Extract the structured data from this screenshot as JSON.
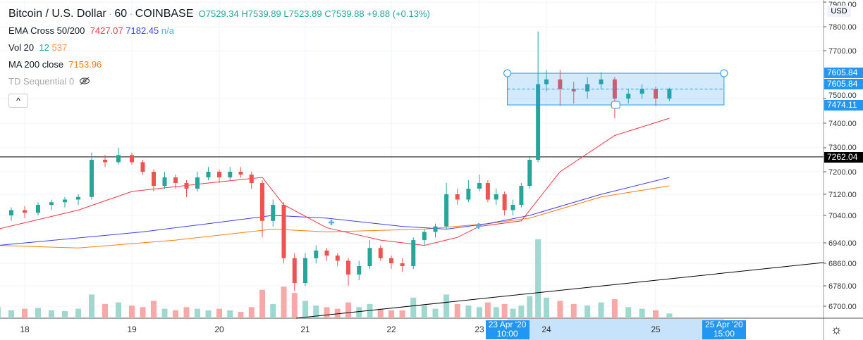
{
  "header": {
    "symbol": "Bitcoin / U.S. Dollar",
    "interval": "60",
    "exchange": "COINBASE",
    "open": "O7529.34",
    "high": "H7539.89",
    "low": "L7523.89",
    "close": "C7539.88",
    "change": "+9.88 (+0.13%)"
  },
  "indicators": {
    "ema_cross": {
      "label": "EMA Cross 50/200",
      "v1": "7427.07",
      "v2": "7182.45",
      "v3": "n/a"
    },
    "vol": {
      "label": "Vol 20",
      "v1": "12",
      "v2": "537"
    },
    "ma": {
      "label": "MA 200 close",
      "v1": "7153.96"
    },
    "td": {
      "label": "TD Sequential 0",
      "icon": "eye-off-icon"
    }
  },
  "collapse_icon": "chevron-up-icon",
  "currency": "USD",
  "settings_icon": "gear-icon",
  "colors": {
    "up": "#26a69a",
    "down": "#ef5350",
    "ema50": "#f23645",
    "ema200": "#3d3dff",
    "ma200": "#ff7f0e",
    "selection": "#2196f3"
  },
  "chart_data": {
    "type": "candlestick",
    "y_ticks": [
      "7900.00",
      "7800.00",
      "7700.00",
      "7500.00",
      "7400.00",
      "7300.00",
      "7200.00",
      "7120.00",
      "7040.00",
      "6940.00",
      "6860.00",
      "6780.00",
      "6700.00"
    ],
    "x_ticks": [
      "18",
      "19",
      "20",
      "21",
      "22",
      "23",
      "24",
      "25"
    ],
    "price_tags": {
      "box_top": "7605.84",
      "box_top2": "7605.84",
      "box_bottom": "7474.11",
      "hline": "7262.04"
    },
    "time_tags": {
      "start": "23 Apr '20  10:00",
      "end": "25 Apr '20  15:00"
    },
    "candles": [
      [
        "04-17 18:00",
        7030,
        7050,
        7010,
        7040
      ],
      [
        "04-17 21:00",
        7040,
        7070,
        7020,
        7060
      ],
      [
        "04-18 00:00",
        7060,
        7075,
        7030,
        7050
      ],
      [
        "04-18 03:00",
        7050,
        7090,
        7040,
        7080
      ],
      [
        "04-18 06:00",
        7080,
        7100,
        7060,
        7090
      ],
      [
        "04-18 09:00",
        7090,
        7110,
        7070,
        7100
      ],
      [
        "04-18 12:00",
        7100,
        7120,
        7080,
        7110
      ],
      [
        "04-18 15:00",
        7110,
        7280,
        7100,
        7250
      ],
      [
        "04-18 18:00",
        7250,
        7270,
        7220,
        7240
      ],
      [
        "04-18 21:00",
        7240,
        7300,
        7230,
        7270
      ],
      [
        "04-19 00:00",
        7270,
        7280,
        7230,
        7240
      ],
      [
        "04-19 03:00",
        7240,
        7250,
        7190,
        7200
      ],
      [
        "04-19 06:00",
        7200,
        7210,
        7130,
        7150
      ],
      [
        "04-19 09:00",
        7150,
        7200,
        7140,
        7180
      ],
      [
        "04-19 12:00",
        7180,
        7190,
        7140,
        7160
      ],
      [
        "04-19 15:00",
        7160,
        7170,
        7110,
        7140
      ],
      [
        "04-19 18:00",
        7140,
        7200,
        7130,
        7180
      ],
      [
        "04-19 21:00",
        7180,
        7220,
        7170,
        7200
      ],
      [
        "04-20 00:00",
        7200,
        7210,
        7160,
        7180
      ],
      [
        "04-20 03:00",
        7180,
        7220,
        7170,
        7200
      ],
      [
        "04-20 06:00",
        7200,
        7220,
        7180,
        7190
      ],
      [
        "04-20 09:00",
        7190,
        7200,
        7140,
        7160
      ],
      [
        "04-20 12:00",
        7160,
        7170,
        6960,
        7020
      ],
      [
        "04-20 15:00",
        7020,
        7100,
        7000,
        7080
      ],
      [
        "04-20 18:00",
        7080,
        7090,
        6860,
        6880
      ],
      [
        "04-20 21:00",
        6880,
        6900,
        6760,
        6790
      ],
      [
        "04-21 00:00",
        6790,
        6900,
        6780,
        6880
      ],
      [
        "04-21 03:00",
        6880,
        6930,
        6860,
        6910
      ],
      [
        "04-21 06:00",
        6910,
        6920,
        6870,
        6890
      ],
      [
        "04-21 09:00",
        6890,
        6900,
        6850,
        6870
      ],
      [
        "04-21 12:00",
        6870,
        6880,
        6780,
        6820
      ],
      [
        "04-21 15:00",
        6820,
        6870,
        6800,
        6850
      ],
      [
        "04-21 18:00",
        6850,
        6950,
        6840,
        6920
      ],
      [
        "04-21 21:00",
        6920,
        6930,
        6870,
        6880
      ],
      [
        "04-22 00:00",
        6880,
        6890,
        6840,
        6860
      ],
      [
        "04-22 03:00",
        6860,
        6880,
        6830,
        6850
      ],
      [
        "04-22 06:00",
        6850,
        6960,
        6840,
        6950
      ],
      [
        "04-22 09:00",
        6950,
        6990,
        6930,
        6980
      ],
      [
        "04-22 12:00",
        6980,
        7010,
        6960,
        7000
      ],
      [
        "04-22 15:00",
        7000,
        7160,
        6990,
        7120
      ],
      [
        "04-22 18:00",
        7120,
        7140,
        7080,
        7100
      ],
      [
        "04-22 21:00",
        7100,
        7170,
        7090,
        7140
      ],
      [
        "04-23 00:00",
        7140,
        7190,
        7130,
        7160
      ],
      [
        "04-23 03:00",
        7160,
        7170,
        7090,
        7100
      ],
      [
        "04-23 06:00",
        7100,
        7140,
        7080,
        7120
      ],
      [
        "04-23 09:00",
        7120,
        7130,
        7040,
        7060
      ],
      [
        "04-23 12:00",
        7060,
        7100,
        7040,
        7080
      ],
      [
        "04-23 15:00",
        7080,
        7160,
        7070,
        7150
      ],
      [
        "04-23 18:00",
        7150,
        7260,
        7140,
        7250
      ],
      [
        "04-23 21:00",
        7250,
        7780,
        7240,
        7560
      ],
      [
        "04-24 00:00",
        7560,
        7620,
        7530,
        7580
      ],
      [
        "04-24 03:00",
        7580,
        7620,
        7470,
        7540
      ],
      [
        "04-24 06:00",
        7540,
        7570,
        7480,
        7530
      ],
      [
        "04-24 09:00",
        7530,
        7590,
        7500,
        7560
      ],
      [
        "04-24 12:00",
        7560,
        7610,
        7540,
        7580
      ],
      [
        "04-24 15:00",
        7580,
        7590,
        7420,
        7500
      ],
      [
        "04-24 18:00",
        7500,
        7540,
        7480,
        7520
      ],
      [
        "04-24 21:00",
        7520,
        7560,
        7500,
        7540
      ],
      [
        "04-25 00:00",
        7540,
        7550,
        7470,
        7500
      ],
      [
        "04-25 03:00",
        7500,
        7545,
        7490,
        7540
      ]
    ],
    "volumes": [
      700,
      500,
      600,
      650,
      500,
      450,
      600,
      1500,
      900,
      1000,
      800,
      700,
      1100,
      600,
      500,
      700,
      600,
      500,
      600,
      500,
      400,
      700,
      1800,
      900,
      2000,
      1600,
      1100,
      800,
      700,
      600,
      1000,
      700,
      900,
      600,
      500,
      500,
      1300,
      800,
      600,
      1500,
      900,
      800,
      700,
      1000,
      700,
      900,
      600,
      800,
      1400,
      5000,
      1300,
      1100,
      900,
      800,
      1000,
      1200,
      700,
      600,
      500,
      300
    ],
    "ema50": [
      [
        "04-17 18:00",
        6990
      ],
      [
        "04-18 12:00",
        7060
      ],
      [
        "04-19 00:00",
        7130
      ],
      [
        "04-19 21:00",
        7160
      ],
      [
        "04-20 12:00",
        7180
      ],
      [
        "04-20 18:00",
        7080
      ],
      [
        "04-21 06:00",
        6995
      ],
      [
        "04-21 21:00",
        6950
      ],
      [
        "04-22 09:00",
        6930
      ],
      [
        "04-22 18:00",
        6960
      ],
      [
        "04-23 00:00",
        7000
      ],
      [
        "04-23 15:00",
        7020
      ],
      [
        "04-23 21:00",
        7100
      ],
      [
        "04-24 03:00",
        7200
      ],
      [
        "04-24 15:00",
        7350
      ],
      [
        "04-25 03:00",
        7420
      ]
    ],
    "ema200": [
      [
        "04-17 18:00",
        6930
      ],
      [
        "04-19 03:00",
        6980
      ],
      [
        "04-19 21:00",
        7010
      ],
      [
        "04-20 15:00",
        7040
      ],
      [
        "04-21 06:00",
        7030
      ],
      [
        "04-22 03:00",
        7000
      ],
      [
        "04-22 15:00",
        6990
      ],
      [
        "04-23 03:00",
        7010
      ],
      [
        "04-23 18:00",
        7040
      ],
      [
        "04-24 12:00",
        7120
      ],
      [
        "04-25 03:00",
        7180
      ]
    ],
    "ma200": [
      [
        "04-17 18:00",
        6930
      ],
      [
        "04-18 12:00",
        6920
      ],
      [
        "04-19 12:00",
        6950
      ],
      [
        "04-20 15:00",
        6990
      ],
      [
        "04-21 06:00",
        6980
      ],
      [
        "04-22 09:00",
        6990
      ],
      [
        "04-23 03:00",
        7010
      ],
      [
        "04-23 18:00",
        7030
      ],
      [
        "04-24 12:00",
        7110
      ],
      [
        "04-25 03:00",
        7150
      ]
    ],
    "rectangle": {
      "top": 7605.84,
      "bottom": 7474.11,
      "start": "04-23 10:00",
      "end": "04-25 15:00"
    },
    "horizontal_line": 7262.04
  }
}
